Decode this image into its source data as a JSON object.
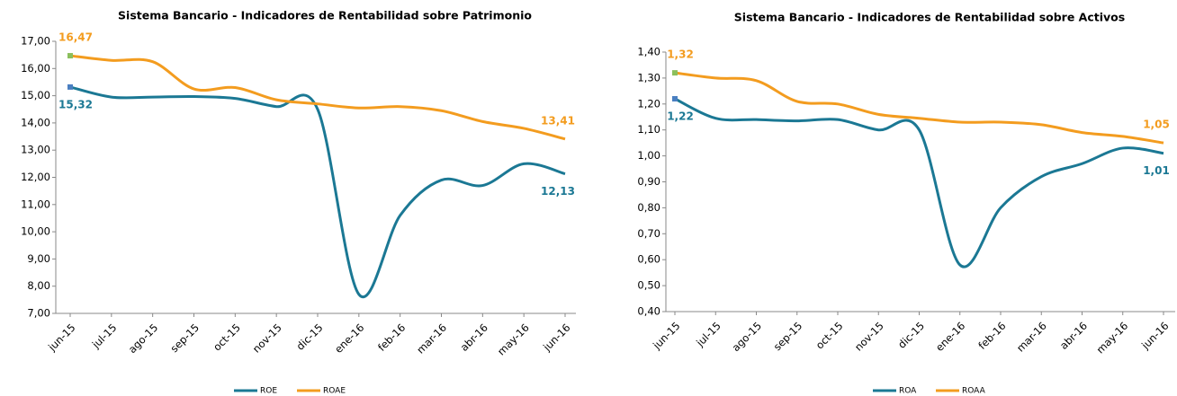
{
  "chart_data": [
    {
      "type": "line",
      "title": "Sistema Bancario - Indicadores de Rentabilidad sobre Patrimonio",
      "categories": [
        "jun-15",
        "jul-15",
        "ago-15",
        "sep-15",
        "oct-15",
        "nov-15",
        "dic-15",
        "ene-16",
        "feb-16",
        "mar-16",
        "abr-16",
        "may-16",
        "jun-16"
      ],
      "series": [
        {
          "name": "ROE",
          "color": "#1b7894",
          "values": [
            15.32,
            14.95,
            14.95,
            14.97,
            14.9,
            14.6,
            14.5,
            7.7,
            10.6,
            11.9,
            11.7,
            12.5,
            12.13
          ],
          "value_labels": [
            "15,32",
            null,
            null,
            null,
            null,
            null,
            null,
            null,
            null,
            null,
            null,
            null,
            "12,13"
          ]
        },
        {
          "name": "ROAE",
          "color": "#f39c1f",
          "values": [
            16.47,
            16.3,
            16.25,
            15.25,
            15.3,
            14.85,
            14.7,
            14.55,
            14.6,
            14.45,
            14.05,
            13.8,
            13.41
          ],
          "value_labels": [
            "16,47",
            null,
            null,
            null,
            null,
            null,
            null,
            null,
            null,
            null,
            null,
            null,
            "13,41"
          ]
        }
      ],
      "ylim": [
        7,
        17
      ],
      "yticks": [
        {
          "value": 7,
          "label": "7,00"
        },
        {
          "value": 8,
          "label": "8,00"
        },
        {
          "value": 9,
          "label": "9,00"
        },
        {
          "value": 10,
          "label": "10,00"
        },
        {
          "value": 11,
          "label": "11,00"
        },
        {
          "value": 12,
          "label": "12,00"
        },
        {
          "value": 13,
          "label": "13,00"
        },
        {
          "value": 14,
          "label": "14,00"
        },
        {
          "value": 15,
          "label": "15,00"
        },
        {
          "value": 16,
          "label": "16,00"
        },
        {
          "value": 17,
          "label": "17,00"
        }
      ],
      "legend": "bottom"
    },
    {
      "type": "line",
      "title": "Sistema Bancario - Indicadores de Rentabilidad sobre Activos",
      "categories": [
        "jun-15",
        "jul-15",
        "ago-15",
        "sep-15",
        "oct-15",
        "nov-15",
        "dic-15",
        "ene-16",
        "feb-16",
        "mar-16",
        "abr-16",
        "may-16",
        "jun-16"
      ],
      "series": [
        {
          "name": "ROA",
          "color": "#1b7894",
          "values": [
            1.22,
            1.145,
            1.14,
            1.135,
            1.14,
            1.1,
            1.1,
            0.58,
            0.8,
            0.92,
            0.97,
            1.03,
            1.01
          ],
          "value_labels": [
            "1,22",
            null,
            null,
            null,
            null,
            null,
            null,
            null,
            null,
            null,
            null,
            null,
            "1,01"
          ]
        },
        {
          "name": "ROAA",
          "color": "#f39c1f",
          "values": [
            1.32,
            1.3,
            1.29,
            1.21,
            1.2,
            1.16,
            1.145,
            1.13,
            1.13,
            1.12,
            1.09,
            1.075,
            1.05
          ],
          "value_labels": [
            "1,32",
            null,
            null,
            null,
            null,
            null,
            null,
            null,
            null,
            null,
            null,
            null,
            "1,05"
          ]
        }
      ],
      "ylim": [
        0.4,
        1.4
      ],
      "yticks": [
        {
          "value": 0.4,
          "label": "0,40"
        },
        {
          "value": 0.5,
          "label": "0,50"
        },
        {
          "value": 0.6,
          "label": "0,60"
        },
        {
          "value": 0.7,
          "label": "0,70"
        },
        {
          "value": 0.8,
          "label": "0,80"
        },
        {
          "value": 0.9,
          "label": "0,90"
        },
        {
          "value": 1.0,
          "label": "1,00"
        },
        {
          "value": 1.1,
          "label": "1,10"
        },
        {
          "value": 1.2,
          "label": "1,20"
        },
        {
          "value": 1.3,
          "label": "1,30"
        },
        {
          "value": 1.4,
          "label": "1,40"
        }
      ],
      "legend": "bottom"
    }
  ]
}
